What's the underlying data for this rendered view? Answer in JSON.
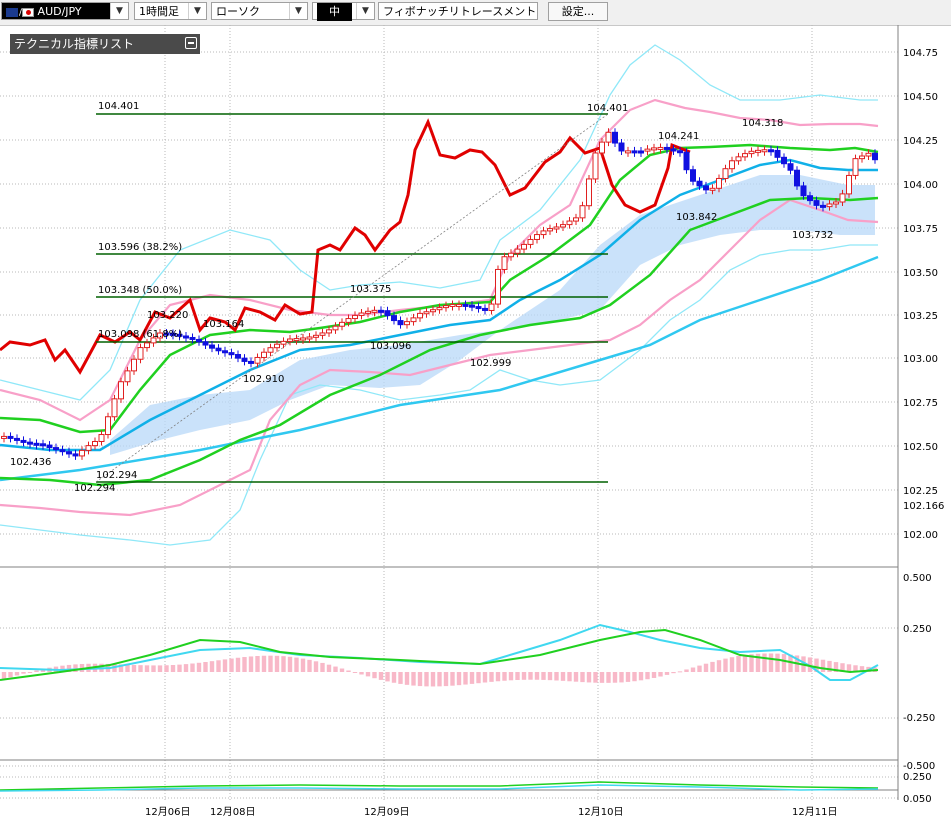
{
  "toolbar": {
    "symbol": "AUD/JPY",
    "timeframe": "1時間足",
    "chart_type": "ローソク",
    "size": "中",
    "tool": "フィボナッチリトレースメント",
    "settings_label": "設定..."
  },
  "panel": {
    "title": "テクニカル指標リスト"
  },
  "colors": {
    "candle_up": "#e02020",
    "candle_down": "#1010e0",
    "ma_short": "#00d000",
    "ma_mid": "#00c0f0",
    "ma_long": "#40c0e0",
    "bollinger_outer": "#80e8f8",
    "bollinger_inner": "#f8a0c0",
    "ichimoku_cloud": "#b8d8f8",
    "fibo_line": "#006000",
    "red_line": "#e00000"
  },
  "price_axis": {
    "ticks": [
      "104.75",
      "104.50",
      "104.25",
      "104.00",
      "103.75",
      "103.50",
      "103.25",
      "103.00",
      "102.75",
      "102.50",
      "102.25",
      "102.00"
    ],
    "current_label": "102.166"
  },
  "macd_axis": {
    "ticks": [
      "0.500",
      "0.250",
      "-0.250",
      "-0.500"
    ]
  },
  "osc_axis": {
    "ticks": [
      "0.250",
      "0.050"
    ]
  },
  "time_axis": {
    "labels": [
      "12月06日",
      "12月08日",
      "12月09日",
      "12月10日",
      "12月11日"
    ]
  },
  "fibo_labels": [
    {
      "text": "104.401"
    },
    {
      "text": "103.596 (38.2%)"
    },
    {
      "text": "103.348 (50.0%)"
    },
    {
      "text": "103.098 (61.8%)"
    }
  ],
  "price_annotations": [
    {
      "text": "104.401"
    },
    {
      "text": "104.241"
    },
    {
      "text": "104.318"
    },
    {
      "text": "103.842"
    },
    {
      "text": "103.732"
    },
    {
      "text": "103.375"
    },
    {
      "text": "103.096"
    },
    {
      "text": "102.999"
    },
    {
      "text": "103.220"
    },
    {
      "text": "103.164"
    },
    {
      "text": "102.910"
    },
    {
      "text": "102.436"
    },
    {
      "text": "102.294"
    },
    {
      "text": "102.294"
    }
  ]
}
